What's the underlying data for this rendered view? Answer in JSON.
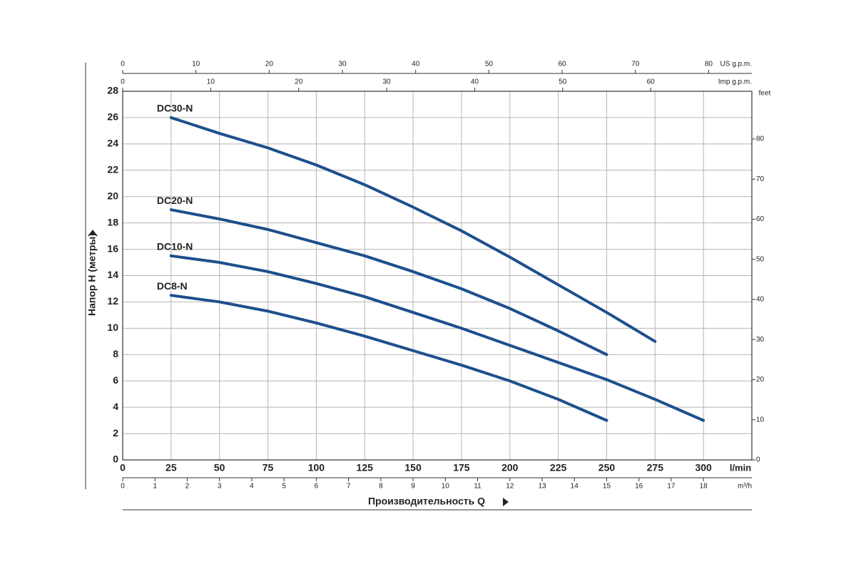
{
  "chart_data": {
    "type": "line",
    "xlabel": "Производительность Q",
    "ylabel": "Напор H (метры)",
    "xunit": "l/min",
    "x": [
      25,
      50,
      75,
      100,
      125,
      150,
      175,
      200,
      225,
      250,
      275,
      300
    ],
    "series": [
      {
        "name": "DC30-N",
        "color": "#1d4f8c",
        "values": [
          26,
          24.8,
          23.7,
          22.4,
          20.9,
          19.2,
          17.4,
          15.4,
          13.3,
          11.2,
          9,
          null
        ]
      },
      {
        "name": "DC20-N",
        "color": "#1d4f8c",
        "values": [
          19,
          18.3,
          17.5,
          16.5,
          15.5,
          14.3,
          13.0,
          11.5,
          9.8,
          8,
          null,
          null
        ]
      },
      {
        "name": "DC10-N",
        "color": "#1d4f8c",
        "values": [
          15.5,
          15.0,
          14.3,
          13.4,
          12.4,
          11.2,
          10.0,
          8.7,
          7.4,
          6.1,
          4.6,
          3
        ]
      },
      {
        "name": "DC8-N",
        "color": "#1d4f8c",
        "values": [
          12.5,
          12.0,
          11.3,
          10.4,
          9.4,
          8.3,
          7.2,
          6.0,
          4.6,
          3,
          null,
          null
        ]
      }
    ],
    "xlim": [
      0,
      325
    ],
    "xticks": [
      0,
      25,
      50,
      75,
      100,
      125,
      150,
      175,
      200,
      225,
      250,
      275,
      300
    ],
    "ylim": [
      0,
      28
    ],
    "yticks": [
      0,
      2,
      4,
      6,
      8,
      10,
      12,
      14,
      16,
      18,
      20,
      22,
      24,
      26,
      28
    ],
    "y2label": "feet",
    "y2lim": [
      0,
      91.9
    ],
    "y2ticks": [
      0,
      10,
      20,
      30,
      40,
      50,
      60,
      70,
      80
    ],
    "secondary_x_axes": [
      {
        "position": "bottom",
        "label": "m³/h",
        "lim": [
          0,
          19.5
        ],
        "ticks": [
          0,
          1,
          2,
          3,
          4,
          5,
          6,
          7,
          8,
          9,
          10,
          11,
          12,
          13,
          14,
          15,
          16,
          17,
          18
        ]
      },
      {
        "position": "top",
        "label": "US g.p.m.",
        "lim": [
          0,
          85.9
        ],
        "ticks": [
          0,
          10,
          20,
          30,
          40,
          50,
          60,
          70,
          80
        ]
      },
      {
        "position": "top",
        "label": "Imp g.p.m.",
        "lim": [
          0,
          71.5
        ],
        "ticks": [
          0,
          10,
          20,
          30,
          40,
          50,
          60
        ]
      }
    ],
    "grid": true
  }
}
